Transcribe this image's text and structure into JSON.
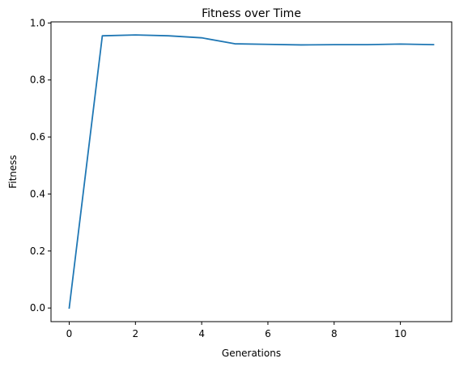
{
  "chart_data": {
    "type": "line",
    "title": "Fitness over Time",
    "xlabel": "Generations",
    "ylabel": "Fitness",
    "xlim": [
      -0.55,
      11.55
    ],
    "ylim": [
      -0.0478,
      1.0039
    ],
    "xticks": [
      0,
      2,
      4,
      6,
      8,
      10
    ],
    "xtick_labels": [
      "0",
      "2",
      "4",
      "6",
      "8",
      "10"
    ],
    "yticks": [
      0.0,
      0.2,
      0.4,
      0.6,
      0.8,
      1.0
    ],
    "ytick_labels": [
      "0.0",
      "0.2",
      "0.4",
      "0.6",
      "0.8",
      "1.0"
    ],
    "grid": false,
    "series": [
      {
        "color": "#1f77b4",
        "x": [
          0,
          1,
          2,
          3,
          4,
          5,
          6,
          7,
          8,
          9,
          10,
          11
        ],
        "values": [
          0.0,
          0.955,
          0.958,
          0.955,
          0.948,
          0.927,
          0.925,
          0.923,
          0.924,
          0.924,
          0.926,
          0.924
        ]
      }
    ]
  }
}
